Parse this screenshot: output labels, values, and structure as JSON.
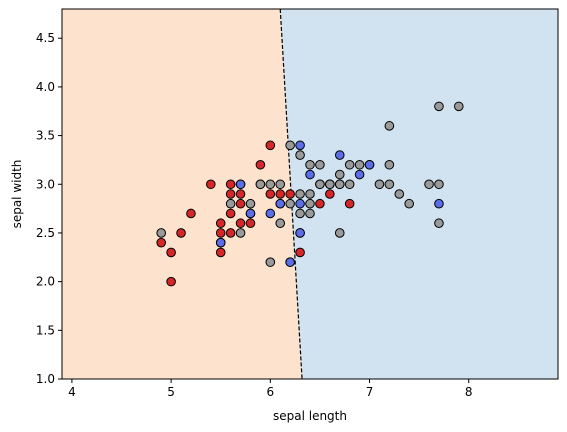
{
  "chart_data": {
    "type": "scatter",
    "xlabel": "sepal length",
    "ylabel": "sepal width",
    "xlim": [
      3.9,
      8.9
    ],
    "ylim": [
      1.0,
      4.8
    ],
    "x_ticks": [
      4,
      5,
      6,
      7,
      8
    ],
    "y_ticks": [
      1.0,
      1.5,
      2.0,
      2.5,
      3.0,
      3.5,
      4.0,
      4.5
    ],
    "grid": false,
    "legend": "none",
    "colors": {
      "region_left": "#fde3cd",
      "region_right": "#d1e3f0",
      "boundary": "#000000",
      "red": "#d62728",
      "blue": "#5b6ee8",
      "purple": "#8a2bd4",
      "gray": "#9a9a9a",
      "edge": "#000000"
    },
    "decision_boundary": {
      "style": "dashed",
      "points": [
        [
          6.1,
          4.8
        ],
        [
          6.32,
          1.0
        ]
      ]
    },
    "regions": [
      {
        "side": "left",
        "color_key": "region_left"
      },
      {
        "side": "right",
        "color_key": "region_right"
      }
    ],
    "series": [
      {
        "color_key": "red",
        "points": [
          [
            4.9,
            2.4
          ],
          [
            5.0,
            2.3
          ],
          [
            5.0,
            2.0
          ],
          [
            5.1,
            2.5
          ],
          [
            5.2,
            2.7
          ],
          [
            5.4,
            3.0
          ],
          [
            5.5,
            2.6
          ],
          [
            5.5,
            2.5
          ],
          [
            5.5,
            2.3
          ],
          [
            5.5,
            2.4
          ],
          [
            5.6,
            3.0
          ],
          [
            5.6,
            2.9
          ],
          [
            5.6,
            2.7
          ],
          [
            5.6,
            2.5
          ],
          [
            5.7,
            2.9
          ],
          [
            5.7,
            2.8
          ],
          [
            5.7,
            2.6
          ],
          [
            5.7,
            3.0
          ],
          [
            5.8,
            2.7
          ],
          [
            5.8,
            2.6
          ],
          [
            5.9,
            3.2
          ],
          [
            5.9,
            3.0
          ],
          [
            6.0,
            3.4
          ],
          [
            6.0,
            2.9
          ],
          [
            6.1,
            2.9
          ],
          [
            6.1,
            2.8
          ],
          [
            6.2,
            2.9
          ],
          [
            6.2,
            2.2
          ],
          [
            6.3,
            2.3
          ],
          [
            6.3,
            2.5
          ],
          [
            6.5,
            2.8
          ],
          [
            6.6,
            2.9
          ],
          [
            6.6,
            3.0
          ],
          [
            6.8,
            2.8
          ],
          [
            7.0,
            3.2
          ]
        ]
      },
      {
        "color_key": "blue",
        "points": [
          [
            5.5,
            2.4
          ],
          [
            5.7,
            3.0
          ],
          [
            5.8,
            2.7
          ],
          [
            6.0,
            2.7
          ],
          [
            6.1,
            2.8
          ],
          [
            6.3,
            3.4
          ],
          [
            6.3,
            2.8
          ],
          [
            6.3,
            2.5
          ],
          [
            6.2,
            2.2
          ],
          [
            6.4,
            3.1
          ],
          [
            6.5,
            3.0
          ],
          [
            6.7,
            3.3
          ],
          [
            6.7,
            3.0
          ],
          [
            6.9,
            3.1
          ],
          [
            6.6,
            3.0
          ],
          [
            7.0,
            3.2
          ],
          [
            7.7,
            2.8
          ]
        ]
      },
      {
        "color_key": "gray",
        "points": [
          [
            4.9,
            2.5
          ],
          [
            5.6,
            2.8
          ],
          [
            5.7,
            2.5
          ],
          [
            5.8,
            2.8
          ],
          [
            5.9,
            3.0
          ],
          [
            6.0,
            3.0
          ],
          [
            6.0,
            2.2
          ],
          [
            6.1,
            3.0
          ],
          [
            6.1,
            2.6
          ],
          [
            6.2,
            3.4
          ],
          [
            6.2,
            2.8
          ],
          [
            6.3,
            3.3
          ],
          [
            6.3,
            2.9
          ],
          [
            6.3,
            2.7
          ],
          [
            6.4,
            3.2
          ],
          [
            6.4,
            2.8
          ],
          [
            6.4,
            2.9
          ],
          [
            6.4,
            2.7
          ],
          [
            6.5,
            3.2
          ],
          [
            6.5,
            3.0
          ],
          [
            6.6,
            3.0
          ],
          [
            6.7,
            3.1
          ],
          [
            6.7,
            3.0
          ],
          [
            6.7,
            2.5
          ],
          [
            6.8,
            3.2
          ],
          [
            6.8,
            3.0
          ],
          [
            6.9,
            3.2
          ],
          [
            7.1,
            3.0
          ],
          [
            7.2,
            3.6
          ],
          [
            7.2,
            3.2
          ],
          [
            7.2,
            3.0
          ],
          [
            7.3,
            2.9
          ],
          [
            7.4,
            2.8
          ],
          [
            7.6,
            3.0
          ],
          [
            7.7,
            3.8
          ],
          [
            7.7,
            3.0
          ],
          [
            7.7,
            2.6
          ],
          [
            7.9,
            3.8
          ]
        ]
      }
    ]
  }
}
